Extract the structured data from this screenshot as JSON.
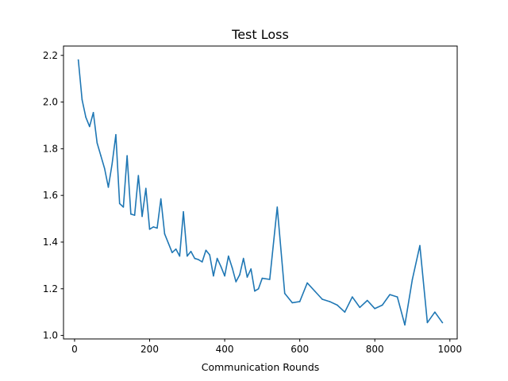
{
  "chart_data": {
    "type": "line",
    "title": "Test Loss",
    "xlabel": "Communication Rounds",
    "ylabel": "",
    "xlim": [
      -29.5,
      1019.5
    ],
    "ylim": [
      0.985,
      2.24
    ],
    "xticks": [
      0,
      200,
      400,
      600,
      800,
      1000
    ],
    "yticks": [
      1.0,
      1.2,
      1.4,
      1.6,
      1.8,
      2.0,
      2.2
    ],
    "xtick_labels": [
      "0",
      "200",
      "400",
      "600",
      "800",
      "1000"
    ],
    "ytick_labels": [
      "1.0",
      "1.2",
      "1.4",
      "1.6",
      "1.8",
      "2.0",
      "2.2"
    ],
    "grid": false,
    "legend": "none",
    "series": [
      {
        "color": "#1f77b4",
        "x": [
          10,
          20,
          30,
          40,
          50,
          60,
          70,
          80,
          90,
          100,
          110,
          120,
          130,
          140,
          150,
          160,
          170,
          180,
          190,
          200,
          210,
          220,
          230,
          240,
          250,
          260,
          270,
          280,
          290,
          300,
          310,
          320,
          330,
          340,
          350,
          360,
          370,
          380,
          390,
          400,
          410,
          420,
          430,
          440,
          450,
          460,
          470,
          480,
          490,
          500,
          520,
          540,
          560,
          580,
          600,
          620,
          640,
          660,
          680,
          700,
          720,
          740,
          760,
          780,
          800,
          820,
          840,
          860,
          880,
          900,
          920,
          940,
          960,
          980
        ],
        "y": [
          2.18,
          2.01,
          1.935,
          1.895,
          1.955,
          1.825,
          1.77,
          1.715,
          1.635,
          1.735,
          1.86,
          1.565,
          1.55,
          1.77,
          1.52,
          1.515,
          1.685,
          1.51,
          1.63,
          1.455,
          1.465,
          1.46,
          1.585,
          1.435,
          1.395,
          1.355,
          1.37,
          1.34,
          1.53,
          1.34,
          1.36,
          1.33,
          1.325,
          1.315,
          1.365,
          1.345,
          1.255,
          1.33,
          1.295,
          1.255,
          1.34,
          1.29,
          1.23,
          1.26,
          1.33,
          1.25,
          1.285,
          1.19,
          1.2,
          1.245,
          1.24,
          1.55,
          1.18,
          1.14,
          1.145,
          1.225,
          1.19,
          1.155,
          1.145,
          1.13,
          1.1,
          1.165,
          1.12,
          1.15,
          1.115,
          1.13,
          1.175,
          1.165,
          1.045,
          1.24,
          1.385,
          1.055,
          1.1,
          1.055
        ]
      }
    ]
  }
}
